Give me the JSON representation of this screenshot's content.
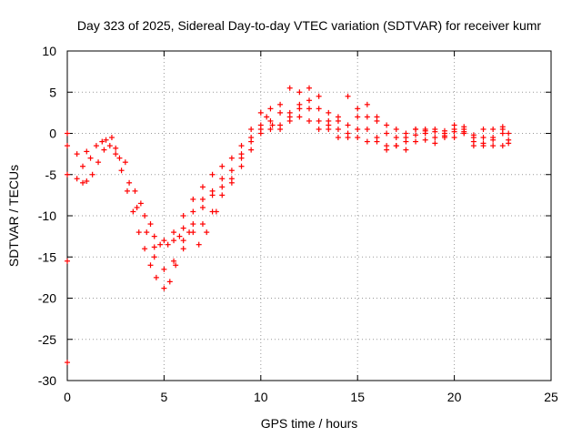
{
  "chart_data": {
    "type": "scatter",
    "title": "Day 323 of 2025, Sidereal Day-to-day VTEC variation (SDTVAR) for receiver kumr",
    "xlabel": "GPS time / hours",
    "ylabel": "SDTVAR / TECUs",
    "xlim": [
      0,
      25
    ],
    "ylim": [
      -30,
      10
    ],
    "xticks": [
      0,
      5,
      10,
      15,
      20,
      25
    ],
    "yticks": [
      10,
      5,
      0,
      -5,
      -10,
      -15,
      -20,
      -25,
      -30
    ],
    "grid": true,
    "marker": "+",
    "color": "#ff0000",
    "series": [
      {
        "points": [
          [
            0.0,
            0.0
          ],
          [
            0.0,
            -1.5
          ],
          [
            0.0,
            -5.0
          ],
          [
            0.0,
            -15.5
          ],
          [
            0.0,
            -27.8
          ],
          [
            0.5,
            -5.5
          ],
          [
            0.8,
            -6.0
          ],
          [
            1.0,
            -5.8
          ],
          [
            1.3,
            -5.0
          ],
          [
            1.6,
            -3.5
          ],
          [
            1.9,
            -2.0
          ],
          [
            2.2,
            -1.5
          ],
          [
            2.5,
            -2.5
          ],
          [
            2.8,
            -4.5
          ],
          [
            3.1,
            -7.0
          ],
          [
            3.4,
            -9.5
          ],
          [
            3.7,
            -12.0
          ],
          [
            4.0,
            -14.0
          ],
          [
            4.3,
            -16.0
          ],
          [
            4.6,
            -17.5
          ],
          [
            5.0,
            -18.8
          ],
          [
            5.3,
            -18.0
          ],
          [
            5.6,
            -16.0
          ],
          [
            6.0,
            -14.0
          ],
          [
            6.5,
            -12.0
          ],
          [
            7.0,
            -11.0
          ],
          [
            7.5,
            -9.5
          ],
          [
            8.0,
            -7.5
          ],
          [
            8.5,
            -5.5
          ],
          [
            9.0,
            -3.0
          ],
          [
            9.5,
            -1.0
          ],
          [
            10.0,
            1.0
          ],
          [
            10.3,
            2.0
          ],
          [
            10.6,
            1.0
          ],
          [
            11.0,
            0.5
          ],
          [
            11.5,
            1.5
          ],
          [
            12.0,
            3.5
          ],
          [
            12.5,
            5.5
          ],
          [
            13.0,
            4.5
          ],
          [
            13.5,
            2.5
          ],
          [
            14.0,
            0.5
          ],
          [
            14.5,
            -0.5
          ],
          [
            15.0,
            0.5
          ],
          [
            15.5,
            2.0
          ],
          [
            16.0,
            1.5
          ],
          [
            16.5,
            1.0
          ],
          [
            17.0,
            -0.5
          ],
          [
            17.5,
            0.0
          ],
          [
            18.0,
            0.5
          ],
          [
            18.5,
            0.0
          ],
          [
            19.0,
            -0.5
          ],
          [
            19.5,
            0.0
          ],
          [
            20.0,
            0.5
          ],
          [
            20.5,
            0.2
          ],
          [
            21.0,
            -1.0
          ],
          [
            21.5,
            -1.5
          ],
          [
            22.0,
            -0.5
          ],
          [
            22.5,
            0.0
          ],
          [
            22.8,
            -0.8
          ],
          [
            0.5,
            -2.5
          ],
          [
            1.0,
            -2.2
          ],
          [
            1.5,
            -1.5
          ],
          [
            2.0,
            -0.8
          ],
          [
            2.5,
            -1.8
          ],
          [
            3.0,
            -3.5
          ],
          [
            3.5,
            -7.0
          ],
          [
            4.0,
            -10.0
          ],
          [
            4.5,
            -12.5
          ],
          [
            5.0,
            -13.0
          ],
          [
            5.5,
            -12.0
          ],
          [
            6.0,
            -10.0
          ],
          [
            6.5,
            -8.0
          ],
          [
            7.0,
            -6.5
          ],
          [
            7.5,
            -5.0
          ],
          [
            8.0,
            -4.0
          ],
          [
            8.5,
            -3.0
          ],
          [
            9.0,
            -1.5
          ],
          [
            9.5,
            0.5
          ],
          [
            10.0,
            2.5
          ],
          [
            10.5,
            3.0
          ],
          [
            11.0,
            3.5
          ],
          [
            11.5,
            5.5
          ],
          [
            12.0,
            5.0
          ],
          [
            12.5,
            3.0
          ],
          [
            13.0,
            1.5
          ],
          [
            13.5,
            0.5
          ],
          [
            14.0,
            -0.5
          ],
          [
            14.5,
            1.0
          ],
          [
            15.0,
            3.0
          ],
          [
            15.5,
            3.5
          ],
          [
            16.0,
            2.0
          ],
          [
            16.5,
            0.0
          ],
          [
            17.0,
            -1.5
          ],
          [
            17.5,
            -1.0
          ],
          [
            18.0,
            -0.2
          ],
          [
            18.5,
            0.5
          ],
          [
            19.0,
            0.2
          ],
          [
            19.5,
            -0.5
          ],
          [
            20.0,
            1.0
          ],
          [
            20.5,
            0.5
          ],
          [
            21.0,
            -0.5
          ],
          [
            21.5,
            -1.2
          ],
          [
            22.0,
            -0.8
          ],
          [
            22.5,
            0.5
          ],
          [
            22.8,
            -1.2
          ],
          [
            3.8,
            -8.5
          ],
          [
            4.3,
            -11.0
          ],
          [
            4.8,
            -13.5
          ],
          [
            5.5,
            -13.0
          ],
          [
            6.0,
            -11.5
          ],
          [
            6.5,
            -9.5
          ],
          [
            7.0,
            -8.0
          ],
          [
            7.5,
            -7.0
          ],
          [
            8.0,
            -5.5
          ],
          [
            8.5,
            -4.5
          ],
          [
            9.0,
            -2.5
          ],
          [
            9.5,
            -0.5
          ],
          [
            10.0,
            0.5
          ],
          [
            10.5,
            1.5
          ],
          [
            11.0,
            2.5
          ],
          [
            11.5,
            2.0
          ],
          [
            12.0,
            2.0
          ],
          [
            12.5,
            1.5
          ],
          [
            13.0,
            0.5
          ],
          [
            13.5,
            1.5
          ],
          [
            14.0,
            2.0
          ],
          [
            14.5,
            4.5
          ],
          [
            15.0,
            2.0
          ],
          [
            15.5,
            0.5
          ],
          [
            16.0,
            -1.0
          ],
          [
            16.5,
            -2.0
          ],
          [
            17.0,
            -1.5
          ],
          [
            17.5,
            -0.5
          ],
          [
            18.0,
            0.5
          ],
          [
            18.5,
            -0.8
          ],
          [
            19.0,
            -1.2
          ],
          [
            19.5,
            0.3
          ],
          [
            20.0,
            -0.5
          ],
          [
            20.5,
            0.8
          ],
          [
            21.0,
            -1.5
          ],
          [
            21.5,
            -0.5
          ],
          [
            22.0,
            0.5
          ],
          [
            22.5,
            -1.5
          ],
          [
            4.5,
            -15.0
          ],
          [
            5.0,
            -16.5
          ],
          [
            5.5,
            -15.5
          ],
          [
            6.0,
            -13.0
          ],
          [
            6.5,
            -11.0
          ],
          [
            7.0,
            -9.0
          ],
          [
            7.5,
            -7.5
          ],
          [
            8.0,
            -6.5
          ],
          [
            8.5,
            -6.0
          ],
          [
            9.0,
            -4.0
          ],
          [
            9.5,
            -2.0
          ],
          [
            10.0,
            0.0
          ],
          [
            10.5,
            0.5
          ],
          [
            11.0,
            1.0
          ],
          [
            11.5,
            2.5
          ],
          [
            12.0,
            3.0
          ],
          [
            12.5,
            4.0
          ],
          [
            13.0,
            3.0
          ],
          [
            13.5,
            1.0
          ],
          [
            14.0,
            1.5
          ],
          [
            14.5,
            0.0
          ],
          [
            15.0,
            -0.5
          ],
          [
            15.5,
            -1.0
          ],
          [
            16.0,
            -0.5
          ],
          [
            16.5,
            -1.5
          ],
          [
            17.0,
            0.5
          ],
          [
            17.5,
            -2.0
          ],
          [
            18.0,
            -1.0
          ],
          [
            18.5,
            0.3
          ],
          [
            19.0,
            0.5
          ],
          [
            19.5,
            -0.3
          ],
          [
            20.0,
            0.2
          ],
          [
            20.5,
            0.0
          ],
          [
            21.0,
            -0.2
          ],
          [
            21.5,
            0.5
          ],
          [
            22.0,
            -1.5
          ],
          [
            22.5,
            0.8
          ],
          [
            22.8,
            0.0
          ],
          [
            0.8,
            -4.0
          ],
          [
            1.2,
            -3.0
          ],
          [
            1.8,
            -1.0
          ],
          [
            2.3,
            -0.5
          ],
          [
            2.7,
            -3.0
          ],
          [
            3.2,
            -6.0
          ],
          [
            3.6,
            -9.0
          ],
          [
            4.1,
            -12.0
          ],
          [
            4.5,
            -13.8
          ],
          [
            5.2,
            -13.5
          ],
          [
            5.8,
            -12.5
          ],
          [
            6.3,
            -12.0
          ],
          [
            6.8,
            -13.5
          ],
          [
            7.2,
            -12.0
          ],
          [
            7.7,
            -9.5
          ]
        ]
      }
    ]
  }
}
